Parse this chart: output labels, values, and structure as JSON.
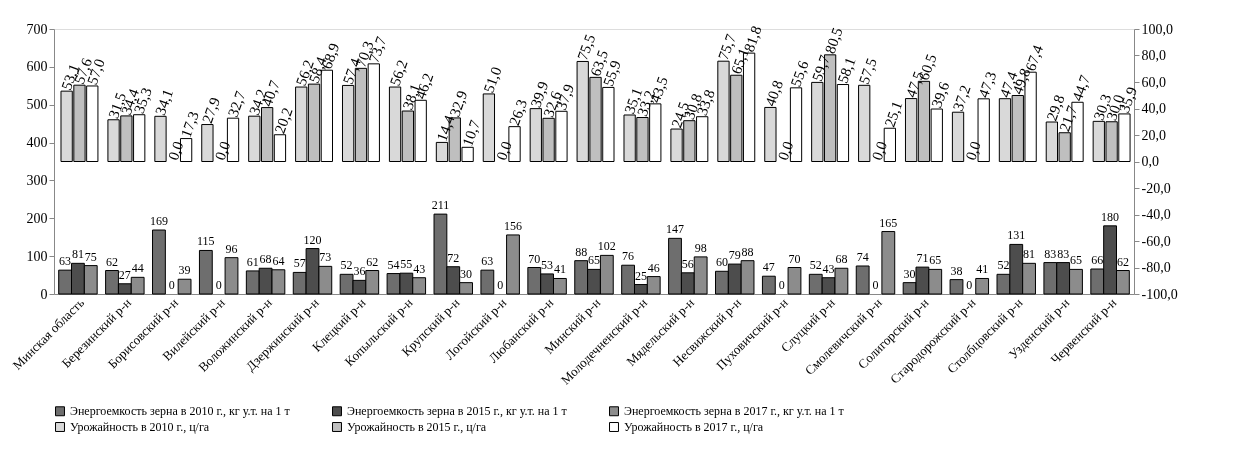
{
  "chart_data": {
    "type": "bar",
    "categories": [
      "Минская область",
      "Березинский р-н",
      "Борисовский р-н",
      "Вилейский р-н",
      "Воложинский р-н",
      "Дзержинский р-н",
      "Клецкий р-н",
      "Копыльский р-н",
      "Крупский р-н",
      "Логойский р-н",
      "Любанский р-н",
      "Минский р-н",
      "Молодечненский р-н",
      "Мядельский р-н",
      "Несвижский р-н",
      "Пуховичский р-н",
      "Слуцкий р-н",
      "Смолевичский р-н",
      "Солигорский р-н",
      "Стародорожский р-н",
      "Столбцовский р-н",
      "Узденский р-н",
      "Червенский р-н"
    ],
    "series": [
      {
        "name": "Энергоемкость зерна в 2010 г., кг у.т. на 1 т",
        "color": "#6e6e6e",
        "values": [
          63,
          62,
          169,
          115,
          61,
          57,
          52,
          54,
          211,
          63,
          70,
          88,
          76,
          147,
          60,
          47,
          52,
          74,
          30,
          38,
          52,
          83,
          66
        ]
      },
      {
        "name": "Энергоемкость зерна в 2015 г., кг у.т. на 1 т",
        "color": "#4d4d4d",
        "values": [
          81,
          27,
          0,
          0,
          68,
          120,
          36,
          55,
          72,
          0,
          53,
          65,
          25,
          56,
          79,
          0,
          43,
          0,
          71,
          0,
          131,
          83,
          180
        ]
      },
      {
        "name": "Энергоемкость зерна в 2017 г., кг у.т. на 1 т",
        "color": "#8c8c8c",
        "values": [
          75,
          44,
          39,
          96,
          64,
          73,
          62,
          43,
          30,
          156,
          41,
          102,
          46,
          98,
          88,
          70,
          68,
          165,
          65,
          41,
          81,
          65,
          62
        ]
      },
      {
        "name": "Урожайность в 2010 г., ц/га",
        "color": "#d9d9d9",
        "axis": "y2",
        "values": [
          53.1,
          31.5,
          34.1,
          27.9,
          34.2,
          56.2,
          57.4,
          56.2,
          14.4,
          51.0,
          39.9,
          75.5,
          35.1,
          24.5,
          75.7,
          40.8,
          59.7,
          57.5,
          47.5,
          37.2,
          47.4,
          29.8,
          30.3
        ],
        "value_labels": [
          "53,1",
          "31,5",
          "34,1",
          "27,9",
          "34,2",
          "56,2",
          "57,4",
          "56,2",
          "14,4",
          "51,0",
          "39,9",
          "75,5",
          "35,1",
          "24,5",
          "75,7",
          "40,8",
          "59,7",
          "57,5",
          "47,5",
          "37,2",
          "47,4",
          "29,8",
          "30,3"
        ]
      },
      {
        "name": "Урожайность в 2015 г., ц/га",
        "color": "#bfbfbf",
        "axis": "y2",
        "values": [
          57.6,
          34.4,
          0.0,
          0.0,
          40.7,
          58.4,
          70.3,
          38.1,
          32.9,
          0.0,
          32.6,
          63.5,
          33.2,
          30.8,
          65.1,
          0.0,
          80.5,
          0.0,
          60.5,
          0.0,
          49.8,
          21.7,
          30.0
        ],
        "value_labels": [
          "57,6",
          "34,4",
          "0,0",
          "0,0",
          "40,7",
          "58,4",
          "70,3",
          "38,1",
          "32,9",
          "0,0",
          "32,6",
          "63,5",
          "33,2",
          "30,8",
          "65,1",
          "0,0",
          "80,5",
          "0,0",
          "60,5",
          "0,0",
          "49,8",
          "21,7",
          "30,0"
        ]
      },
      {
        "name": "Урожайность в 2017 г., ц/га",
        "color": "#ffffff",
        "axis": "y2",
        "values": [
          57.0,
          35.3,
          17.3,
          32.7,
          20.2,
          68.9,
          73.7,
          46.2,
          10.7,
          26.3,
          37.9,
          55.9,
          43.5,
          33.8,
          81.8,
          55.6,
          58.1,
          25.1,
          39.6,
          47.3,
          67.4,
          44.7,
          35.9
        ],
        "value_labels": [
          "57,0",
          "35,3",
          "17,3",
          "32,7",
          "20,2",
          "68,9",
          "73,7",
          "46,2",
          "10,7",
          "26,3",
          "37,9",
          "55,9",
          "43,5",
          "33,8",
          "81,8",
          "55,6",
          "58,1",
          "25,1",
          "39,6",
          "47,3",
          "67,4",
          "44,7",
          "35,9"
        ]
      }
    ],
    "ylim": [
      0,
      700
    ],
    "yticks": [
      0,
      100,
      200,
      300,
      400,
      500,
      600,
      700
    ],
    "y2lim": [
      -100,
      100
    ],
    "y2ticks": [
      {
        "value": -100,
        "label": "-100,0"
      },
      {
        "value": -80,
        "label": "-80,0"
      },
      {
        "value": -60,
        "label": "-60,0"
      },
      {
        "value": -40,
        "label": "-40,0"
      },
      {
        "value": -20,
        "label": "-20,0"
      },
      {
        "value": 0,
        "label": "0,0"
      },
      {
        "value": 20,
        "label": "20,0"
      },
      {
        "value": 40,
        "label": "40,0"
      },
      {
        "value": 60,
        "label": "60,0"
      },
      {
        "value": 80,
        "label": "80,0"
      },
      {
        "value": 100,
        "label": "100,0"
      }
    ],
    "data_labels": true,
    "legend": "bottom"
  }
}
